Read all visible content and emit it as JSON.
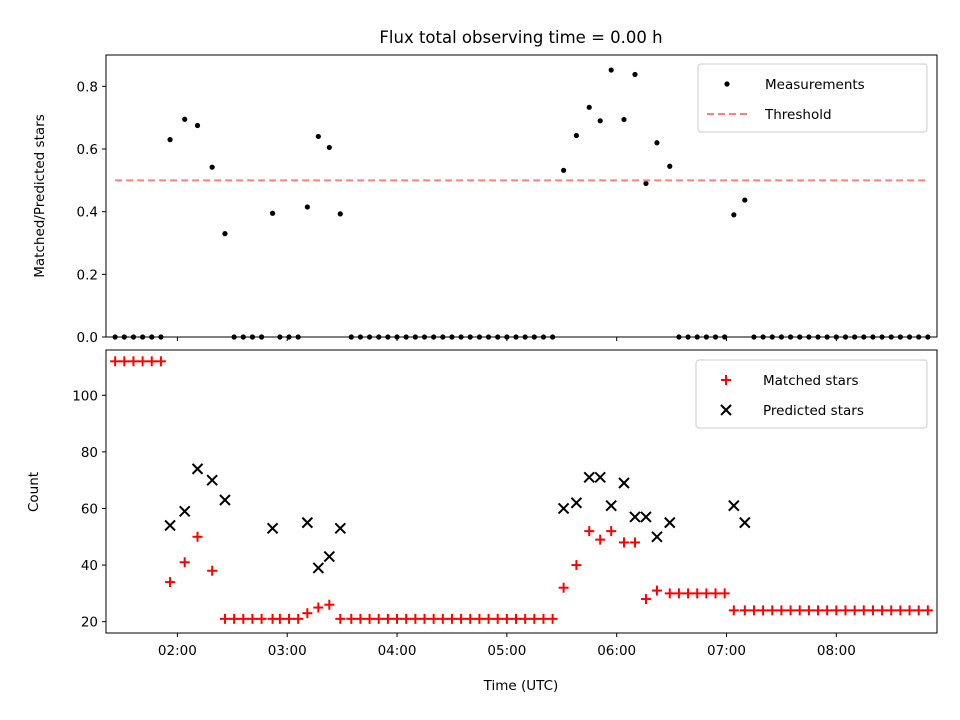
{
  "figure": {
    "title": "Flux total observing time = 0.00 h"
  },
  "chart_data": [
    {
      "type": "scatter",
      "ylabel": "Matched/Predicted stars",
      "xlabel": "",
      "xlim": [
        "01:21",
        "08:55"
      ],
      "ylim": [
        0,
        0.9
      ],
      "x_ticks": [
        "02:00",
        "03:00",
        "04:00",
        "05:00",
        "06:00",
        "07:00",
        "08:00"
      ],
      "x_tick_labels_shown": false,
      "y_ticks": [
        0.0,
        0.2,
        0.4,
        0.6,
        0.8
      ],
      "legend_position": "top-right",
      "legend": [
        "Measurements",
        "Threshold"
      ],
      "colors": {
        "measurements": "#000000",
        "threshold": "#ff7f7f"
      },
      "series": [
        {
          "name": "Measurements",
          "marker": "dot",
          "points": [
            [
              "01:26",
              0
            ],
            [
              "01:31",
              0
            ],
            [
              "01:36",
              0
            ],
            [
              "01:41",
              0
            ],
            [
              "01:46",
              0
            ],
            [
              "01:51",
              0
            ],
            [
              "01:56",
              0.63
            ],
            [
              "02:04",
              0.695
            ],
            [
              "02:11",
              0.675
            ],
            [
              "02:19",
              0.542
            ],
            [
              "02:26",
              0.33
            ],
            [
              "02:31",
              0
            ],
            [
              "02:36",
              0
            ],
            [
              "02:41",
              0
            ],
            [
              "02:46",
              0
            ],
            [
              "02:52",
              0.395
            ],
            [
              "02:56",
              0
            ],
            [
              "03:01",
              0
            ],
            [
              "03:06",
              0
            ],
            [
              "03:11",
              0.415
            ],
            [
              "03:17",
              0.64
            ],
            [
              "03:23",
              0.605
            ],
            [
              "03:29",
              0.393
            ],
            [
              "03:35",
              0
            ],
            [
              "03:40",
              0
            ],
            [
              "03:45",
              0
            ],
            [
              "03:50",
              0
            ],
            [
              "03:55",
              0
            ],
            [
              "04:00",
              0
            ],
            [
              "04:05",
              0
            ],
            [
              "04:10",
              0
            ],
            [
              "04:15",
              0
            ],
            [
              "04:20",
              0
            ],
            [
              "04:25",
              0
            ],
            [
              "04:30",
              0
            ],
            [
              "04:35",
              0
            ],
            [
              "04:40",
              0
            ],
            [
              "04:45",
              0
            ],
            [
              "04:50",
              0
            ],
            [
              "04:55",
              0
            ],
            [
              "05:00",
              0
            ],
            [
              "05:05",
              0
            ],
            [
              "05:10",
              0
            ],
            [
              "05:15",
              0
            ],
            [
              "05:20",
              0
            ],
            [
              "05:25",
              0
            ],
            [
              "05:31",
              0.532
            ],
            [
              "05:38",
              0.643
            ],
            [
              "05:45",
              0.733
            ],
            [
              "05:51",
              0.69
            ],
            [
              "05:57",
              0.852
            ],
            [
              "06:04",
              0.694
            ],
            [
              "06:10",
              0.838
            ],
            [
              "06:16",
              0.49
            ],
            [
              "06:22",
              0.62
            ],
            [
              "06:29",
              0.545
            ],
            [
              "06:34",
              0
            ],
            [
              "06:39",
              0
            ],
            [
              "06:44",
              0
            ],
            [
              "06:49",
              0
            ],
            [
              "06:54",
              0
            ],
            [
              "06:59",
              0
            ],
            [
              "07:04",
              0.39
            ],
            [
              "07:10",
              0.437
            ],
            [
              "07:15",
              0
            ],
            [
              "07:20",
              0
            ],
            [
              "07:25",
              0
            ],
            [
              "07:30",
              0
            ],
            [
              "07:35",
              0
            ],
            [
              "07:40",
              0
            ],
            [
              "07:45",
              0
            ],
            [
              "07:50",
              0
            ],
            [
              "07:55",
              0
            ],
            [
              "08:00",
              0
            ],
            [
              "08:05",
              0
            ],
            [
              "08:10",
              0
            ],
            [
              "08:15",
              0
            ],
            [
              "08:20",
              0
            ],
            [
              "08:25",
              0
            ],
            [
              "08:30",
              0
            ],
            [
              "08:35",
              0
            ],
            [
              "08:40",
              0
            ],
            [
              "08:45",
              0
            ],
            [
              "08:50",
              0
            ]
          ]
        },
        {
          "name": "Threshold",
          "marker": "dashed-line",
          "points": [
            [
              "01:26",
              0.5
            ],
            [
              "08:50",
              0.5
            ]
          ]
        }
      ]
    },
    {
      "type": "scatter",
      "ylabel": "Count",
      "xlabel": "Time (UTC)",
      "xlim": [
        "01:21",
        "08:55"
      ],
      "ylim": [
        16,
        116
      ],
      "x_ticks": [
        "02:00",
        "03:00",
        "04:00",
        "05:00",
        "06:00",
        "07:00",
        "08:00"
      ],
      "x_tick_labels_shown": true,
      "y_ticks": [
        20,
        40,
        60,
        80,
        100
      ],
      "legend_position": "top-right",
      "legend": [
        "Matched stars",
        "Predicted stars"
      ],
      "colors": {
        "matched": "#ff0000",
        "predicted": "#000000"
      },
      "series": [
        {
          "name": "Matched stars",
          "marker": "plus",
          "points": [
            [
              "01:26",
              112
            ],
            [
              "01:31",
              112
            ],
            [
              "01:36",
              112
            ],
            [
              "01:41",
              112
            ],
            [
              "01:46",
              112
            ],
            [
              "01:51",
              112
            ],
            [
              "01:56",
              34
            ],
            [
              "02:04",
              41
            ],
            [
              "02:11",
              50
            ],
            [
              "02:19",
              38
            ],
            [
              "02:26",
              21
            ],
            [
              "02:31",
              21
            ],
            [
              "02:36",
              21
            ],
            [
              "02:41",
              21
            ],
            [
              "02:46",
              21
            ],
            [
              "02:52",
              21
            ],
            [
              "02:56",
              21
            ],
            [
              "03:01",
              21
            ],
            [
              "03:06",
              21
            ],
            [
              "03:11",
              23
            ],
            [
              "03:17",
              25
            ],
            [
              "03:23",
              26
            ],
            [
              "03:29",
              21
            ],
            [
              "03:35",
              21
            ],
            [
              "03:40",
              21
            ],
            [
              "03:45",
              21
            ],
            [
              "03:50",
              21
            ],
            [
              "03:55",
              21
            ],
            [
              "04:00",
              21
            ],
            [
              "04:05",
              21
            ],
            [
              "04:10",
              21
            ],
            [
              "04:15",
              21
            ],
            [
              "04:20",
              21
            ],
            [
              "04:25",
              21
            ],
            [
              "04:30",
              21
            ],
            [
              "04:35",
              21
            ],
            [
              "04:40",
              21
            ],
            [
              "04:45",
              21
            ],
            [
              "04:50",
              21
            ],
            [
              "04:55",
              21
            ],
            [
              "05:00",
              21
            ],
            [
              "05:05",
              21
            ],
            [
              "05:10",
              21
            ],
            [
              "05:15",
              21
            ],
            [
              "05:20",
              21
            ],
            [
              "05:25",
              21
            ],
            [
              "05:31",
              32
            ],
            [
              "05:38",
              40
            ],
            [
              "05:45",
              52
            ],
            [
              "05:51",
              49
            ],
            [
              "05:57",
              52
            ],
            [
              "06:04",
              48
            ],
            [
              "06:10",
              48
            ],
            [
              "06:16",
              28
            ],
            [
              "06:22",
              31
            ],
            [
              "06:29",
              30
            ],
            [
              "06:34",
              30
            ],
            [
              "06:39",
              30
            ],
            [
              "06:44",
              30
            ],
            [
              "06:49",
              30
            ],
            [
              "06:54",
              30
            ],
            [
              "06:59",
              30
            ],
            [
              "07:04",
              24
            ],
            [
              "07:10",
              24
            ],
            [
              "07:15",
              24
            ],
            [
              "07:20",
              24
            ],
            [
              "07:25",
              24
            ],
            [
              "07:30",
              24
            ],
            [
              "07:35",
              24
            ],
            [
              "07:40",
              24
            ],
            [
              "07:45",
              24
            ],
            [
              "07:50",
              24
            ],
            [
              "07:55",
              24
            ],
            [
              "08:00",
              24
            ],
            [
              "08:05",
              24
            ],
            [
              "08:10",
              24
            ],
            [
              "08:15",
              24
            ],
            [
              "08:20",
              24
            ],
            [
              "08:25",
              24
            ],
            [
              "08:30",
              24
            ],
            [
              "08:35",
              24
            ],
            [
              "08:40",
              24
            ],
            [
              "08:45",
              24
            ],
            [
              "08:50",
              24
            ]
          ]
        },
        {
          "name": "Predicted stars",
          "marker": "x",
          "points": [
            [
              "01:56",
              54
            ],
            [
              "02:04",
              59
            ],
            [
              "02:11",
              74
            ],
            [
              "02:19",
              70
            ],
            [
              "02:26",
              63
            ],
            [
              "02:52",
              53
            ],
            [
              "03:11",
              55
            ],
            [
              "03:17",
              39
            ],
            [
              "03:23",
              43
            ],
            [
              "03:29",
              53
            ],
            [
              "05:31",
              60
            ],
            [
              "05:38",
              62
            ],
            [
              "05:45",
              71
            ],
            [
              "05:51",
              71
            ],
            [
              "05:57",
              61
            ],
            [
              "06:04",
              69
            ],
            [
              "06:10",
              57
            ],
            [
              "06:16",
              57
            ],
            [
              "06:22",
              50
            ],
            [
              "06:29",
              55
            ],
            [
              "07:04",
              61
            ],
            [
              "07:10",
              55
            ]
          ]
        }
      ]
    }
  ]
}
